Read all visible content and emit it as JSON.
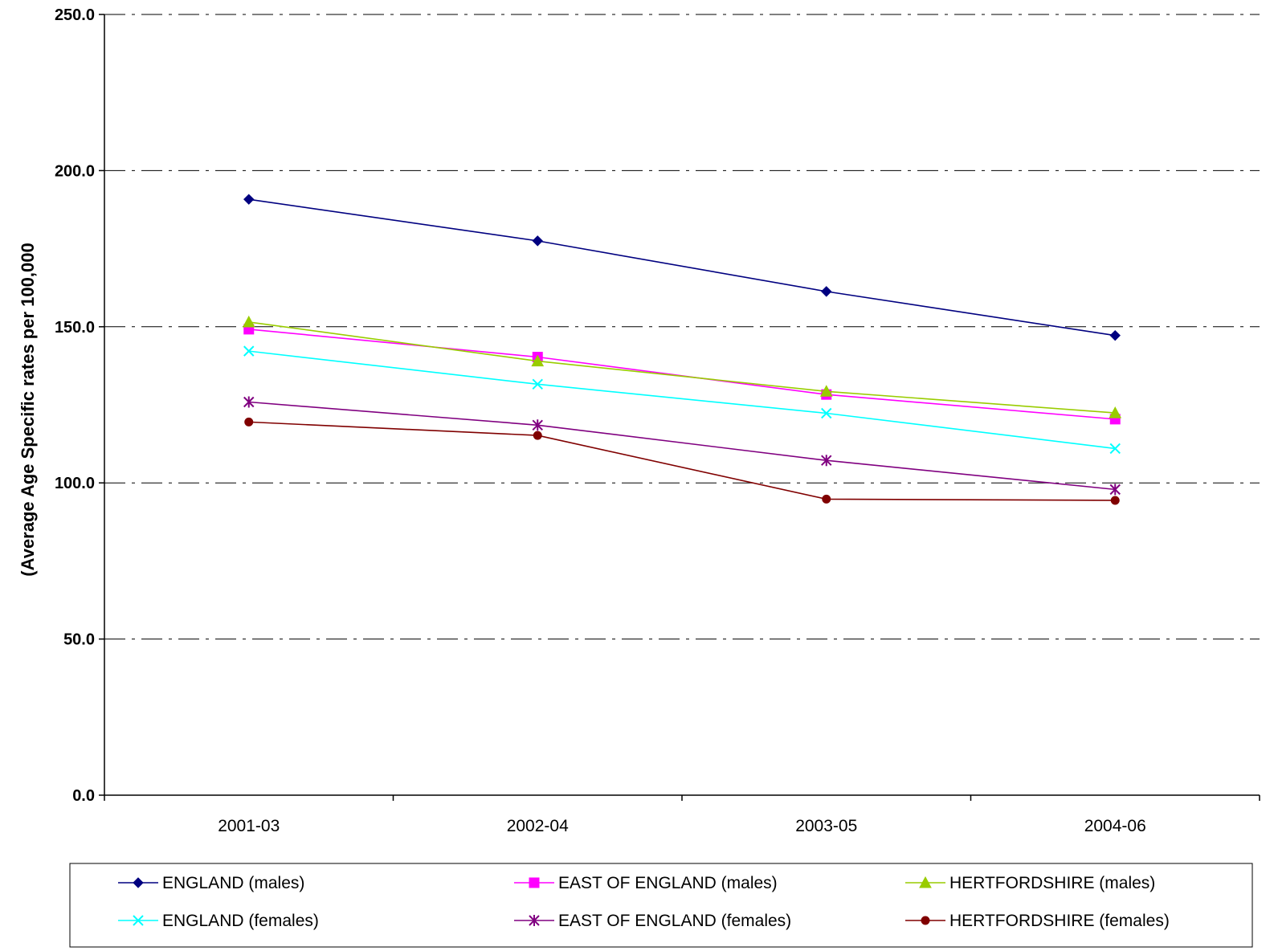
{
  "chart_data": {
    "type": "line",
    "ylabel": "(Average Age Specific rates per 100,000",
    "xlabel": "",
    "title": "",
    "categories": [
      "2001-03",
      "2002-04",
      "2003-05",
      "2004-06"
    ],
    "ylim": [
      0,
      250
    ],
    "yticks": [
      "0.0",
      "50.0",
      "100.0",
      "150.0",
      "200.0",
      "250.0"
    ],
    "grid": true,
    "legend_position": "bottom",
    "series": [
      {
        "name": "ENGLAND (males)",
        "values": [
          190.8,
          177.5,
          161.3,
          147.2
        ],
        "color": "#000080",
        "marker": "diamond"
      },
      {
        "name": "EAST OF ENGLAND (males)",
        "values": [
          149.2,
          140.3,
          128.3,
          120.4
        ],
        "color": "#FF00FF",
        "marker": "square"
      },
      {
        "name": "HERTFORDSHIRE (males)",
        "values": [
          151.5,
          139.0,
          129.3,
          122.4
        ],
        "color": "#99CC00",
        "marker": "triangle"
      },
      {
        "name": "ENGLAND (females)",
        "values": [
          142.2,
          131.6,
          122.3,
          111.0
        ],
        "color": "#00FFFF",
        "marker": "x"
      },
      {
        "name": "EAST OF ENGLAND (females)",
        "values": [
          125.9,
          118.5,
          107.2,
          97.9
        ],
        "color": "#800080",
        "marker": "star"
      },
      {
        "name": "HERTFORDSHIRE (females)",
        "values": [
          119.5,
          115.2,
          94.8,
          94.4
        ],
        "color": "#800000",
        "marker": "circle"
      }
    ]
  }
}
